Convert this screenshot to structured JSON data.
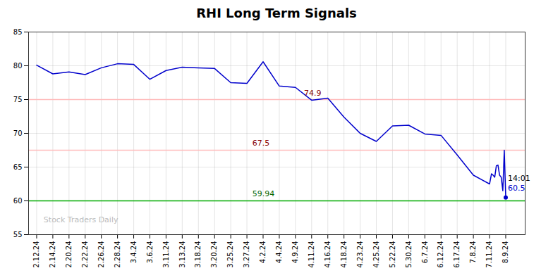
{
  "chart_data": {
    "type": "line",
    "title": "RHI Long Term Signals",
    "color": "#0000cc",
    "x": [
      0,
      1,
      2,
      3,
      4,
      5,
      6,
      7,
      8,
      9,
      10,
      11,
      12,
      13,
      14,
      15,
      16,
      17,
      18,
      19,
      20,
      21,
      22,
      23,
      24,
      25,
      26,
      27,
      28,
      28.12,
      28.22,
      28.32,
      28.42,
      28.52,
      28.62,
      28.72,
      28.82,
      28.91,
      29
    ],
    "values": [
      80.1,
      78.8,
      79.1,
      78.7,
      79.7,
      80.3,
      80.2,
      78.0,
      79.3,
      79.8,
      79.7,
      79.6,
      77.5,
      77.4,
      80.6,
      77.0,
      76.8,
      74.9,
      75.2,
      72.4,
      70.0,
      68.8,
      71.1,
      71.2,
      69.9,
      69.7,
      66.8,
      63.8,
      62.5,
      64.0,
      63.8,
      63.5,
      65.2,
      65.3,
      63.8,
      63.5,
      61.5,
      67.5,
      60.5
    ],
    "xlim": [
      -0.5,
      30.2
    ],
    "xticks": [
      {
        "value": 0,
        "label": "2.12.24"
      },
      {
        "value": 1,
        "label": "2.14.24"
      },
      {
        "value": 2,
        "label": "2.20.24"
      },
      {
        "value": 3,
        "label": "2.22.24"
      },
      {
        "value": 4,
        "label": "2.26.24"
      },
      {
        "value": 5,
        "label": "2.28.24"
      },
      {
        "value": 6,
        "label": "3.4.24"
      },
      {
        "value": 7,
        "label": "3.6.24"
      },
      {
        "value": 8,
        "label": "3.11.24"
      },
      {
        "value": 9,
        "label": "3.13.24"
      },
      {
        "value": 10,
        "label": "3.18.24"
      },
      {
        "value": 11,
        "label": "3.20.24"
      },
      {
        "value": 12,
        "label": "3.25.24"
      },
      {
        "value": 13,
        "label": "3.27.24"
      },
      {
        "value": 14,
        "label": "4.2.24"
      },
      {
        "value": 15,
        "label": "4.4.24"
      },
      {
        "value": 16,
        "label": "4.9.24"
      },
      {
        "value": 17,
        "label": "4.11.24"
      },
      {
        "value": 18,
        "label": "4.16.24"
      },
      {
        "value": 19,
        "label": "4.18.24"
      },
      {
        "value": 20,
        "label": "4.23.24"
      },
      {
        "value": 21,
        "label": "4.25.24"
      },
      {
        "value": 22,
        "label": "5.22.24"
      },
      {
        "value": 23,
        "label": "5.30.24"
      },
      {
        "value": 24,
        "label": "6.7.24"
      },
      {
        "value": 25,
        "label": "6.12.24"
      },
      {
        "value": 26,
        "label": "6.17.24"
      },
      {
        "value": 27,
        "label": "7.8.24"
      },
      {
        "value": 28,
        "label": "7.11.24"
      },
      {
        "value": 29,
        "label": "8.9.24"
      }
    ],
    "ylim": [
      55,
      85
    ],
    "yticks": [
      55,
      60,
      65,
      70,
      75,
      80,
      85
    ],
    "grid": true,
    "reference_lines": [
      {
        "y": 75,
        "color": "#ffbbbb"
      },
      {
        "y": 67.5,
        "color": "#ffbbbb"
      },
      {
        "y": 60,
        "color": "#00aa00"
      }
    ],
    "points": [
      {
        "x": 29,
        "y": 60.5,
        "color": "#0000cc"
      }
    ],
    "annotations": [
      {
        "text": "74.9",
        "x": 16.4,
        "y": 75.6,
        "color": "#880000"
      },
      {
        "text": "67.5",
        "x": 13.2,
        "y": 68.2,
        "color": "#880000"
      },
      {
        "text": "59.94",
        "x": 13.2,
        "y": 60.7,
        "color": "#006600"
      },
      {
        "text": "14:01",
        "x": 29,
        "y": 63,
        "color": "#000000"
      },
      {
        "text": "60.5",
        "x": 29,
        "y": 61.5,
        "color": "#0000cc"
      },
      {
        "text": "Stock Traders Daily",
        "x": 0.3,
        "y": 56.8,
        "color": "#bbbbbb"
      }
    ]
  }
}
